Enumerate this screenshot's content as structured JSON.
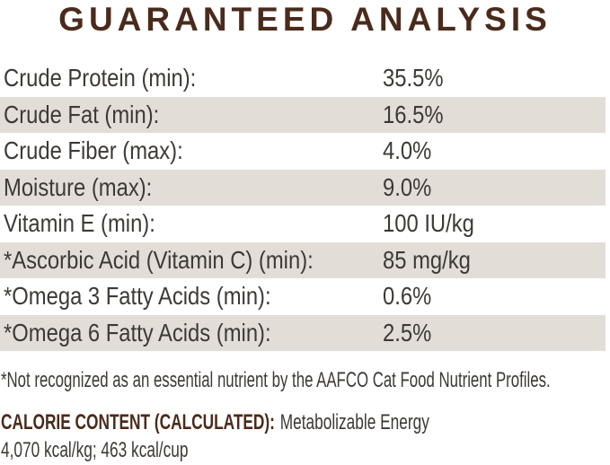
{
  "title": "GUARANTEED ANALYSIS",
  "colors": {
    "accent_brown": "#4a2b1b",
    "row_stripe": "#e3ddd7",
    "body_text": "#3d3936"
  },
  "analysis_table": {
    "rows": [
      {
        "label": "Crude Protein (min):",
        "value": "35.5%"
      },
      {
        "label": "Crude Fat (min):",
        "value": "16.5%"
      },
      {
        "label": "Crude Fiber (max):",
        "value": "4.0%"
      },
      {
        "label": "Moisture (max):",
        "value": "9.0%"
      },
      {
        "label": "Vitamin E (min):",
        "value": "100 IU/kg"
      },
      {
        "label": "*Ascorbic Acid (Vitamin C) (min):",
        "value": "85 mg/kg"
      },
      {
        "label": "*Omega 3 Fatty Acids (min):",
        "value": "0.6%"
      },
      {
        "label": "*Omega 6 Fatty Acids (min):",
        "value": "2.5%"
      }
    ]
  },
  "footnote": "*Not recognized as an essential nutrient by the AAFCO Cat Food Nutrient Profiles.",
  "calorie_content": {
    "heading": "CALORIE CONTENT (CALCULATED):",
    "description": "Metabolizable Energy",
    "values_line": "4,070 kcal/kg; 463 kcal/cup"
  }
}
